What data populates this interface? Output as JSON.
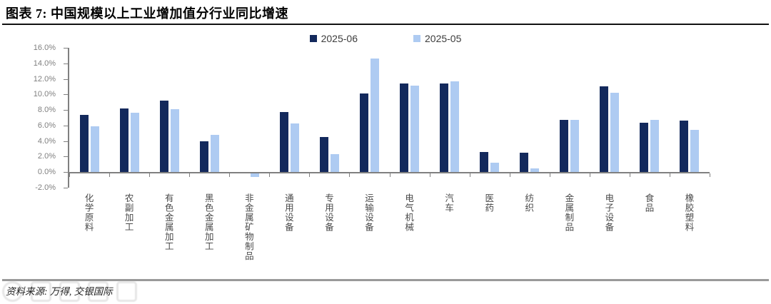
{
  "header": {
    "title": "图表 7: 中国规模以上工业增加值分行业同比增速"
  },
  "footer": {
    "source": "资料来源: 万得, 交银国际"
  },
  "chart_data": {
    "type": "bar",
    "title": "中国规模以上工业增加值分行业同比增速",
    "categories": [
      "化学原料",
      "农副加工",
      "有色金属加工",
      "黑色金属加工",
      "非金属矿物制品",
      "通用设备",
      "专用设备",
      "运输设备",
      "电气机械",
      "汽车",
      "医药",
      "纺织",
      "金属制品",
      "电子设备",
      "食品",
      "橡胶塑料"
    ],
    "series": [
      {
        "name": "2025-06",
        "color": "#13295c",
        "values": [
          7.4,
          8.2,
          9.2,
          4.0,
          -0.1,
          7.7,
          4.5,
          10.1,
          11.4,
          11.4,
          2.6,
          2.5,
          6.7,
          11.0,
          6.4,
          6.6
        ]
      },
      {
        "name": "2025-05",
        "color": "#aecbf2",
        "values": [
          5.9,
          7.6,
          8.1,
          4.8,
          -0.6,
          6.3,
          2.3,
          14.6,
          11.1,
          11.7,
          1.2,
          0.5,
          6.7,
          10.2,
          6.7,
          5.4
        ]
      }
    ],
    "ylim": [
      -2,
      16
    ],
    "ytick_step": 2,
    "ytick_labels": [
      "16.0%",
      "14.0%",
      "12.0%",
      "10.0%",
      "8.0%",
      "6.0%",
      "4.0%",
      "2.0%",
      "0.0%",
      "-2.0%"
    ],
    "unit": "%",
    "grid": false,
    "legend_position": "top-center",
    "axis_color": "#808080",
    "ylabel": "",
    "xlabel": ""
  }
}
